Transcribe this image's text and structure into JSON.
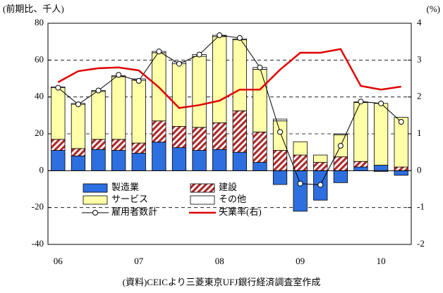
{
  "chart_data": {
    "type": "bar",
    "y_label": "(前期比、千人)",
    "y2_label": "(%)",
    "source": "(資料)CEICより三菱東京UFJ銀行経済調査室作成",
    "categories": [
      "06",
      null,
      null,
      null,
      "07",
      null,
      null,
      null,
      "08",
      null,
      null,
      null,
      "09",
      null,
      null,
      null,
      "10",
      null
    ],
    "ylim": [
      -40,
      80
    ],
    "yticks": [
      -40,
      -20,
      0,
      20,
      40,
      60,
      80
    ],
    "y2lim": [
      -2,
      4
    ],
    "y2ticks": [
      -2,
      -1,
      0,
      1,
      2,
      3,
      4
    ],
    "grid": true,
    "legend": "lower left",
    "series": [
      {
        "name": "製造業",
        "type": "bar",
        "color": "#2e6fe0",
        "values": [
          11,
          8,
          11.5,
          11,
          9.5,
          15.5,
          12.5,
          11,
          11.5,
          10,
          4.5,
          -7.5,
          -22,
          -16,
          -6.5,
          2,
          3,
          -2.5
        ]
      },
      {
        "name": "建設",
        "type": "bar",
        "color": "#b02a2a",
        "values": [
          6,
          4,
          5.5,
          6,
          5.5,
          11.5,
          11.5,
          12.5,
          14.5,
          22.5,
          16.5,
          11,
          8.5,
          4.5,
          7.5,
          3,
          0,
          2
        ]
      },
      {
        "name": "サービス",
        "type": "bar",
        "color": "#ffffa8",
        "values": [
          28,
          24,
          26,
          34,
          34,
          37,
          34,
          38.5,
          46.8,
          38.5,
          34,
          16,
          7.2,
          4,
          12,
          32,
          33.5,
          27
        ]
      },
      {
        "name": "その他",
        "type": "bar",
        "color": "#ffffff",
        "values": [
          0.5,
          0.5,
          0.5,
          0.5,
          0.8,
          0.7,
          1,
          1,
          0.7,
          0.5,
          1,
          1,
          0,
          0,
          0.5,
          0.3,
          -0.5,
          0
        ]
      },
      {
        "name": "雇用者数計",
        "type": "line",
        "color": "#000000",
        "values": [
          45,
          36,
          43.5,
          52,
          48.7,
          64.7,
          58,
          63,
          73.5,
          72,
          56,
          21,
          -7,
          -7.7,
          13.5,
          37.5,
          36.5,
          26.5
        ]
      },
      {
        "name": "失業率(右)",
        "type": "line",
        "axis": "y2",
        "color": "#e00000",
        "values": [
          2.4,
          2.7,
          2.78,
          2.8,
          2.72,
          2.26,
          1.7,
          1.78,
          1.9,
          2.2,
          2.2,
          2.74,
          3.2,
          3.2,
          3.3,
          2.3,
          2.2,
          2.28
        ]
      }
    ]
  }
}
